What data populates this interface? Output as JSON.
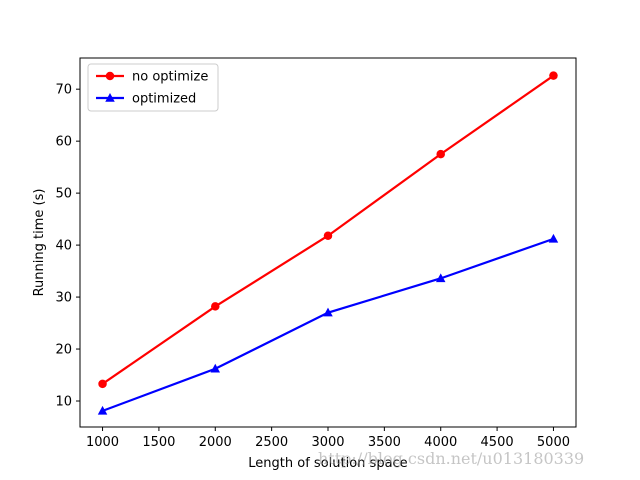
{
  "chart_data": {
    "type": "line",
    "title": "",
    "xlabel": "Length of solution space",
    "ylabel": "Running time (s)",
    "x": [
      1000,
      2000,
      3000,
      4000,
      5000
    ],
    "xlim": [
      800,
      5200
    ],
    "ylim": [
      5,
      76
    ],
    "xticks": [
      1000,
      1500,
      2000,
      2500,
      3000,
      3500,
      4000,
      4500,
      5000
    ],
    "yticks": [
      10,
      20,
      30,
      40,
      50,
      60,
      70
    ],
    "grid": false,
    "legend_position": "top-left",
    "series": [
      {
        "name": "no optimize",
        "values": [
          13.3,
          28.2,
          41.8,
          57.5,
          72.6
        ],
        "color": "#ff0000",
        "marker": "circle"
      },
      {
        "name": "optimized",
        "values": [
          8.1,
          16.2,
          27.0,
          33.6,
          41.2
        ],
        "color": "#0000ff",
        "marker": "triangle"
      }
    ]
  },
  "watermark": "http://blog.csdn.net/u013180339"
}
